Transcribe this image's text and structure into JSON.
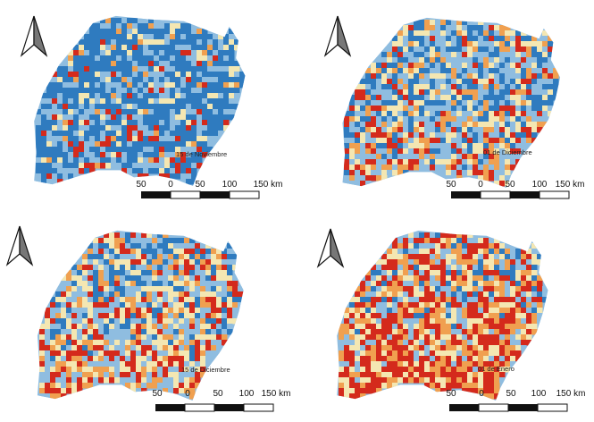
{
  "palette": {
    "blue": "#2f7bbf",
    "light_blue": "#8fbde0",
    "pale": "#f4e7b2",
    "orange": "#f0a050",
    "red": "#d42a1c"
  },
  "panels": [
    {
      "date": "15 de Noviembre",
      "mix": {
        "blue": 0.62,
        "light_blue": 0.22,
        "pale": 0.08,
        "orange": 0.04,
        "red": 0.04
      },
      "scalebar": {
        "ticks": [
          "50",
          "0",
          "50",
          "100",
          "150 km"
        ]
      },
      "north_arrow": "north-arrow-icon"
    },
    {
      "date": "01 de Diciembre",
      "mix": {
        "blue": 0.34,
        "light_blue": 0.32,
        "pale": 0.16,
        "orange": 0.1,
        "red": 0.08
      },
      "scalebar": {
        "ticks": [
          "50",
          "0",
          "50",
          "100",
          "150 km"
        ]
      },
      "north_arrow": "north-arrow-icon"
    },
    {
      "date": "15 de Diciembre",
      "mix": {
        "blue": 0.22,
        "light_blue": 0.3,
        "pale": 0.2,
        "orange": 0.14,
        "red": 0.14
      },
      "scalebar": {
        "ticks": [
          "50",
          "0",
          "50",
          "100",
          "150 km"
        ]
      },
      "north_arrow": "north-arrow-icon"
    },
    {
      "date": "01 de Enero",
      "mix": {
        "blue": 0.12,
        "light_blue": 0.2,
        "pale": 0.18,
        "orange": 0.22,
        "red": 0.28
      },
      "scalebar": {
        "ticks": [
          "50",
          "0",
          "50",
          "100",
          "150 km"
        ]
      },
      "north_arrow": "north-arrow-icon"
    }
  ]
}
